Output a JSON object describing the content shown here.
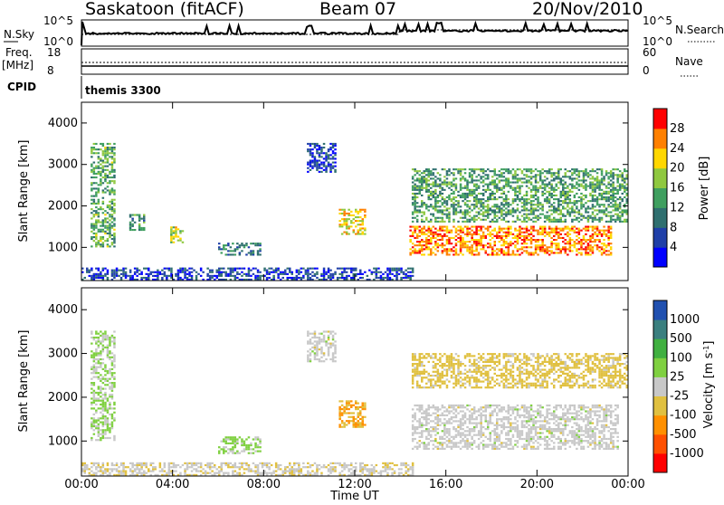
{
  "header": {
    "station": "Saskatoon (fitACF)",
    "beam": "Beam 07",
    "date": "20/Nov/2010"
  },
  "top_panels": {
    "nsky_label": "N.Sky",
    "nsky_scale_top": "10^5",
    "nsky_scale_bottom": "10^0",
    "nsearch_label": "N.Search",
    "freq_label": "Freq.",
    "freq_unit": "[MHz]",
    "freq_scale_top": "18",
    "freq_scale_bottom": "8",
    "nave_label": "Nave",
    "nave_scale_top": "60",
    "nave_scale_bottom": "0",
    "cpid_label": "CPID",
    "cpid_value": "themis 3300"
  },
  "chart_data": [
    {
      "type": "heatmap",
      "panel": "power",
      "ylabel": "Slant Range [km]",
      "yticks": [
        "4000",
        "3000",
        "2000",
        "1000"
      ],
      "ylim": [
        200,
        4500
      ],
      "x": [
        "00:00",
        "04:00",
        "08:00",
        "12:00",
        "16:00",
        "20:00",
        "00:00"
      ],
      "xlim_hours": [
        0,
        24
      ],
      "colorbar": {
        "label": "Power [dB]",
        "ticks": [
          "28",
          "24",
          "20",
          "16",
          "12",
          "8",
          "4"
        ],
        "range": [
          0,
          30
        ],
        "colors": [
          "#0000ff",
          "#1f3fa8",
          "#2f6f6f",
          "#3f9f5f",
          "#8fc83f",
          "#ffd700",
          "#ff8000",
          "#ff0000"
        ]
      },
      "regions": [
        {
          "t": [
            0.4,
            1.5
          ],
          "r": [
            1000,
            3500
          ],
          "p": 14
        },
        {
          "t": [
            2.1,
            2.8
          ],
          "r": [
            1400,
            1800
          ],
          "p": 12
        },
        {
          "t": [
            3.9,
            4.4
          ],
          "r": [
            1100,
            1500
          ],
          "p": 18
        },
        {
          "t": [
            6.0,
            7.8
          ],
          "r": [
            800,
            1100
          ],
          "p": 10
        },
        {
          "t": [
            9.9,
            11.1
          ],
          "r": [
            2800,
            3500
          ],
          "p": 6
        },
        {
          "t": [
            11.3,
            12.4
          ],
          "r": [
            1300,
            1900
          ],
          "p": 20
        },
        {
          "t": [
            14.4,
            23.3
          ],
          "r": [
            800,
            1500
          ],
          "p": 24
        },
        {
          "t": [
            14.5,
            24.0
          ],
          "r": [
            1600,
            2900
          ],
          "p": 13
        },
        {
          "t": [
            0.0,
            14.5
          ],
          "r": [
            200,
            500
          ],
          "p": 6
        }
      ]
    },
    {
      "type": "heatmap",
      "panel": "velocity",
      "ylabel": "Slant Range [km]",
      "yticks": [
        "4000",
        "3000",
        "2000",
        "1000"
      ],
      "ylim": [
        200,
        4500
      ],
      "x": [
        "00:00",
        "04:00",
        "08:00",
        "12:00",
        "16:00",
        "20:00",
        "00:00"
      ],
      "xlabel": "Time UT",
      "xlim_hours": [
        0,
        24
      ],
      "colorbar": {
        "label": "Velocity [m s^-1]",
        "ticks": [
          "1000",
          "500",
          "100",
          "25",
          "-25",
          "-100",
          "-500",
          "-1000"
        ],
        "range": [
          -1000,
          1000
        ],
        "colors": [
          "#ff0000",
          "#ff5000",
          "#ff9000",
          "#e0c040",
          "#c8c8c8",
          "#7fd040",
          "#40b040",
          "#3a7f7f",
          "#2050b0"
        ]
      },
      "regions": [
        {
          "t": [
            0.4,
            1.5
          ],
          "r": [
            1000,
            3500
          ],
          "v": 120
        },
        {
          "t": [
            11.3,
            12.4
          ],
          "r": [
            1300,
            1900
          ],
          "v": -300
        },
        {
          "t": [
            14.5,
            23.6
          ],
          "r": [
            800,
            1800
          ],
          "v": 0
        },
        {
          "t": [
            14.5,
            24.0
          ],
          "r": [
            2200,
            3000
          ],
          "v": -200
        },
        {
          "t": [
            0.0,
            14.5
          ],
          "r": [
            200,
            500
          ],
          "v": -60
        },
        {
          "t": [
            9.9,
            11.1
          ],
          "r": [
            2800,
            3500
          ],
          "v": 0
        },
        {
          "t": [
            6.0,
            7.8
          ],
          "r": [
            700,
            1100
          ],
          "v": 150
        }
      ]
    }
  ]
}
